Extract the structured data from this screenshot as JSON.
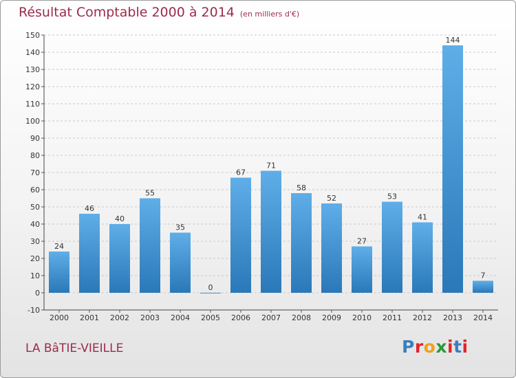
{
  "header": {
    "title": "Résultat Comptable 2000 à 2014",
    "subtitle": "(en milliers d'€)"
  },
  "footer": {
    "place": "LA BâTIE-VIEILLE",
    "logo_text": "Proxiti"
  },
  "colors": {
    "title": "#9b2b4b",
    "bar_top": "#5faee8",
    "bar_bottom": "#2a78b8",
    "logo_letters": [
      "#3a7fc0",
      "#e2252b",
      "#f0a020",
      "#2a9a3a",
      "#e2252b",
      "#3a7fc0",
      "#e2252b"
    ]
  },
  "chart_data": {
    "type": "bar",
    "categories": [
      "2000",
      "2001",
      "2002",
      "2003",
      "2004",
      "2005",
      "2006",
      "2007",
      "2008",
      "2009",
      "2010",
      "2011",
      "2012",
      "2013",
      "2014"
    ],
    "values": [
      24,
      46,
      40,
      55,
      35,
      0,
      67,
      71,
      58,
      52,
      27,
      53,
      41,
      144,
      7
    ],
    "ylim": [
      -10,
      150
    ],
    "yticks": [
      -10,
      0,
      10,
      20,
      30,
      40,
      50,
      60,
      70,
      80,
      90,
      100,
      110,
      120,
      130,
      140,
      150
    ],
    "grid": "y-dashed",
    "show_data_labels": true
  }
}
